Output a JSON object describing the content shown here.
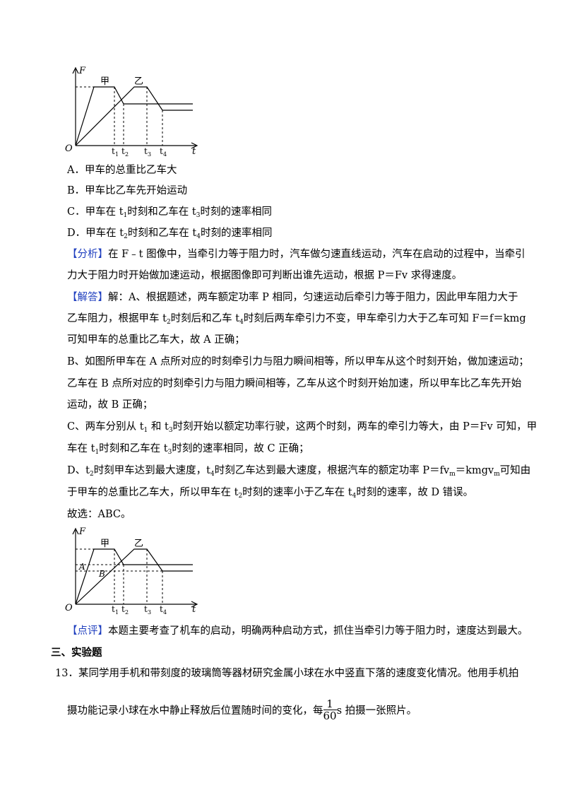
{
  "graph_labels": {
    "y_axis": "F",
    "x_axis": "t",
    "origin": "O",
    "car_a": "甲",
    "car_b": "乙",
    "t1": "1",
    "t2": "2",
    "t3": "3",
    "t4": "4",
    "t_base": "t",
    "point_a": "A",
    "point_b": "B"
  },
  "options": [
    {
      "label": "A．",
      "text": "甲车的总重比乙车大"
    },
    {
      "label": "B．",
      "text": "甲车比乙车先开始运动"
    },
    {
      "label": "C．",
      "text_1": "甲车在 t",
      "sub_1": "1",
      "text_2": "时刻和乙车在 t",
      "sub_2": "3",
      "text_3": "时刻的速率相同"
    },
    {
      "label": "D．",
      "text_1": "甲车在 t",
      "sub_1": "2",
      "text_2": "时刻和乙车在 t",
      "sub_2": "4",
      "text_3": "时刻的速率相同"
    }
  ],
  "analysis": {
    "tag": "【分析】",
    "line1": "在 F﹣t 图像中，当牵引力等于阻力时，汽车做匀速直线运动，汽车在启动的过程中，当牵引",
    "line2": "力大于阻力时开始做加速运动，根据图像即可判断出谁先运动，根据 P＝Fv 求得速度。"
  },
  "solution": {
    "tag": "【解答】",
    "line1": "解：A、根据题述，两车额定功率 P 相同，匀速运动后牵引力等于阻力，因此甲车阻力大于",
    "line2a": "乙车阻力，根据甲车 t",
    "line2_sub1": "2",
    "line2b": "时刻后和乙车 t",
    "line2_sub2": "4",
    "line2c": "时刻后两车牵引力不变，甲车牵引力大于乙车可知 F＝f＝kmg",
    "line3": "可知甲车的总重比乙车大，故 A 正确；",
    "line4": "B、如图所甲车在 A 点所对应的时刻牵引力与阻力瞬间相等，所以甲车从这个时刻开始，做加速运动；",
    "line5": "乙车在 B 点所对应的时刻牵引力与阻力瞬间相等，乙车从这个时刻开始加速，所以甲车比乙车先开始",
    "line6": "运动，故 B 正确；",
    "line7a": "C、两车分别从 t",
    "line7_sub1": "1",
    "line7b": " 和 t",
    "line7_sub2": "3",
    "line7c": "时刻开始以额定功率行驶，这两个时刻，两车的牵引力等大，由 P＝Fv 可知，甲",
    "line8a": "车在 t",
    "line8_sub1": "1",
    "line8b": "时刻和乙车在 t",
    "line8_sub2": "3",
    "line8c": "时刻的速率相同，故 C 正确；",
    "line9a": "D、t",
    "line9_sub1": "2",
    "line9b": "时刻甲车达到最大速度，t",
    "line9_sub2": "4",
    "line9c": "时刻乙车达到最大速度，根据汽车的额定功率 P＝fv",
    "line9_sub3": "m",
    "line9d": "＝kmgv",
    "line9_sub4": "m",
    "line9e": "可知由",
    "line10a": "于甲车的总重比乙车大，所以甲车在 t",
    "line10_sub1": "2",
    "line10b": "时刻的速率小于乙车在 t",
    "line10_sub2": "4",
    "line10c": "时刻的速率，故 D 错误。",
    "answer": "故选：ABC。"
  },
  "comment": {
    "tag": "【点评】",
    "text": "本题主要考查了机车的启动，明确两种启动方式，抓住当牵引力等于阻力时，速度达到最大。"
  },
  "section_title": "三、实验题",
  "question13": {
    "number": "13．",
    "line1": "某同学用手机和带刻度的玻璃筒等器材研究金属小球在水中竖直下落的速度变化情况。他用手机拍",
    "line2a": "摄功能记录小球在水中静止释放后位置随时间的变化，每",
    "frac_num": "1",
    "frac_den": "60",
    "line2b": "s 拍摄一张照片。"
  }
}
